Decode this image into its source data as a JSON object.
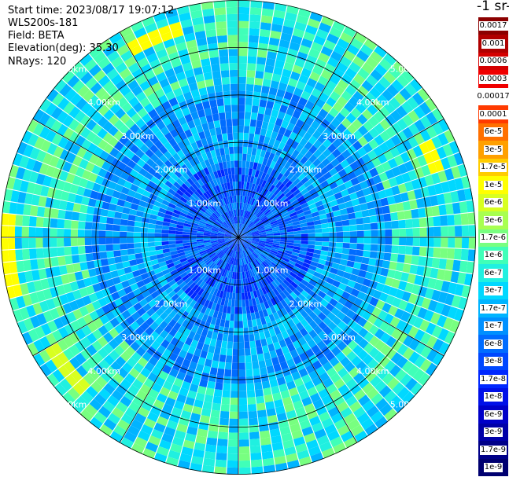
{
  "header": {
    "start_time": "Start time: 2023/08/17 19:07:12",
    "instrument": "WLS200s-181",
    "field": "Field: BETA",
    "elevation": "Elevation(deg): 35.30",
    "nrays": "NRays: 120"
  },
  "colorbar": {
    "title": "-1 sr-1",
    "levels": [
      {
        "label": "0.0017",
        "color": "#8b0000"
      },
      {
        "label": "0.001",
        "color": "#b00000"
      },
      {
        "label": "0.0006",
        "color": "#d40000"
      },
      {
        "label": "0.0003",
        "color": "#f00000"
      },
      {
        "label": "0.00017",
        "color": "#ffffff"
      },
      {
        "label": "0.0001",
        "color": "#ff3a00"
      },
      {
        "label": "6e-5",
        "color": "#ff7000"
      },
      {
        "label": "3e-5",
        "color": "#ffa000"
      },
      {
        "label": "1.7e-5",
        "color": "#ffcc00"
      },
      {
        "label": "1e-5",
        "color": "#ffff00"
      },
      {
        "label": "6e-6",
        "color": "#d8ff20"
      },
      {
        "label": "3e-6",
        "color": "#a8ff50"
      },
      {
        "label": "1.7e-6",
        "color": "#78ff80"
      },
      {
        "label": "1e-6",
        "color": "#40ffb8"
      },
      {
        "label": "6e-7",
        "color": "#20f0e0"
      },
      {
        "label": "3e-7",
        "color": "#00d8ff"
      },
      {
        "label": "1.7e-7",
        "color": "#00b4ff"
      },
      {
        "label": "1e-7",
        "color": "#0090ff"
      },
      {
        "label": "6e-8",
        "color": "#006cff"
      },
      {
        "label": "3e-8",
        "color": "#0048ff"
      },
      {
        "label": "1.7e-8",
        "color": "#0028ff"
      },
      {
        "label": "1e-8",
        "color": "#0010e8"
      },
      {
        "label": "6e-9",
        "color": "#0000c8"
      },
      {
        "label": "3e-9",
        "color": "#0000a8"
      },
      {
        "label": "1.7e-9",
        "color": "#000088"
      },
      {
        "label": "1e-9",
        "color": "#000070"
      }
    ]
  },
  "chart_data": {
    "type": "heatmap",
    "projection": "polar",
    "field": "BETA",
    "nrays": 120,
    "range_rings_km": [
      1,
      2,
      3,
      4,
      5
    ],
    "range_ring_labels": [
      "1.00km",
      "2.00km",
      "3.00km",
      "4.00km",
      "5.00km"
    ],
    "max_range_km": 5,
    "spoke_angles_deg": [
      0,
      30,
      60,
      90,
      120,
      150,
      180,
      210,
      240,
      270,
      300,
      330
    ],
    "typical_value_near_range": "3e-8 to 1e-7",
    "typical_value_far_range": "3e-7 to 1.7e-6",
    "enhanced_arcs": [
      {
        "azimuth_deg_from": 330,
        "azimuth_deg_to": 345,
        "range_km": 4.6,
        "value": "1e-5"
      },
      {
        "azimuth_deg_from": 62,
        "azimuth_deg_to": 72,
        "range_km": 4.4,
        "value": "1e-5"
      },
      {
        "azimuth_deg_from": 255,
        "azimuth_deg_to": 275,
        "range_km": 4.8,
        "value": "1e-5"
      },
      {
        "azimuth_deg_from": 225,
        "azimuth_deg_to": 240,
        "range_km": 4.5,
        "value": "6e-6"
      }
    ]
  }
}
